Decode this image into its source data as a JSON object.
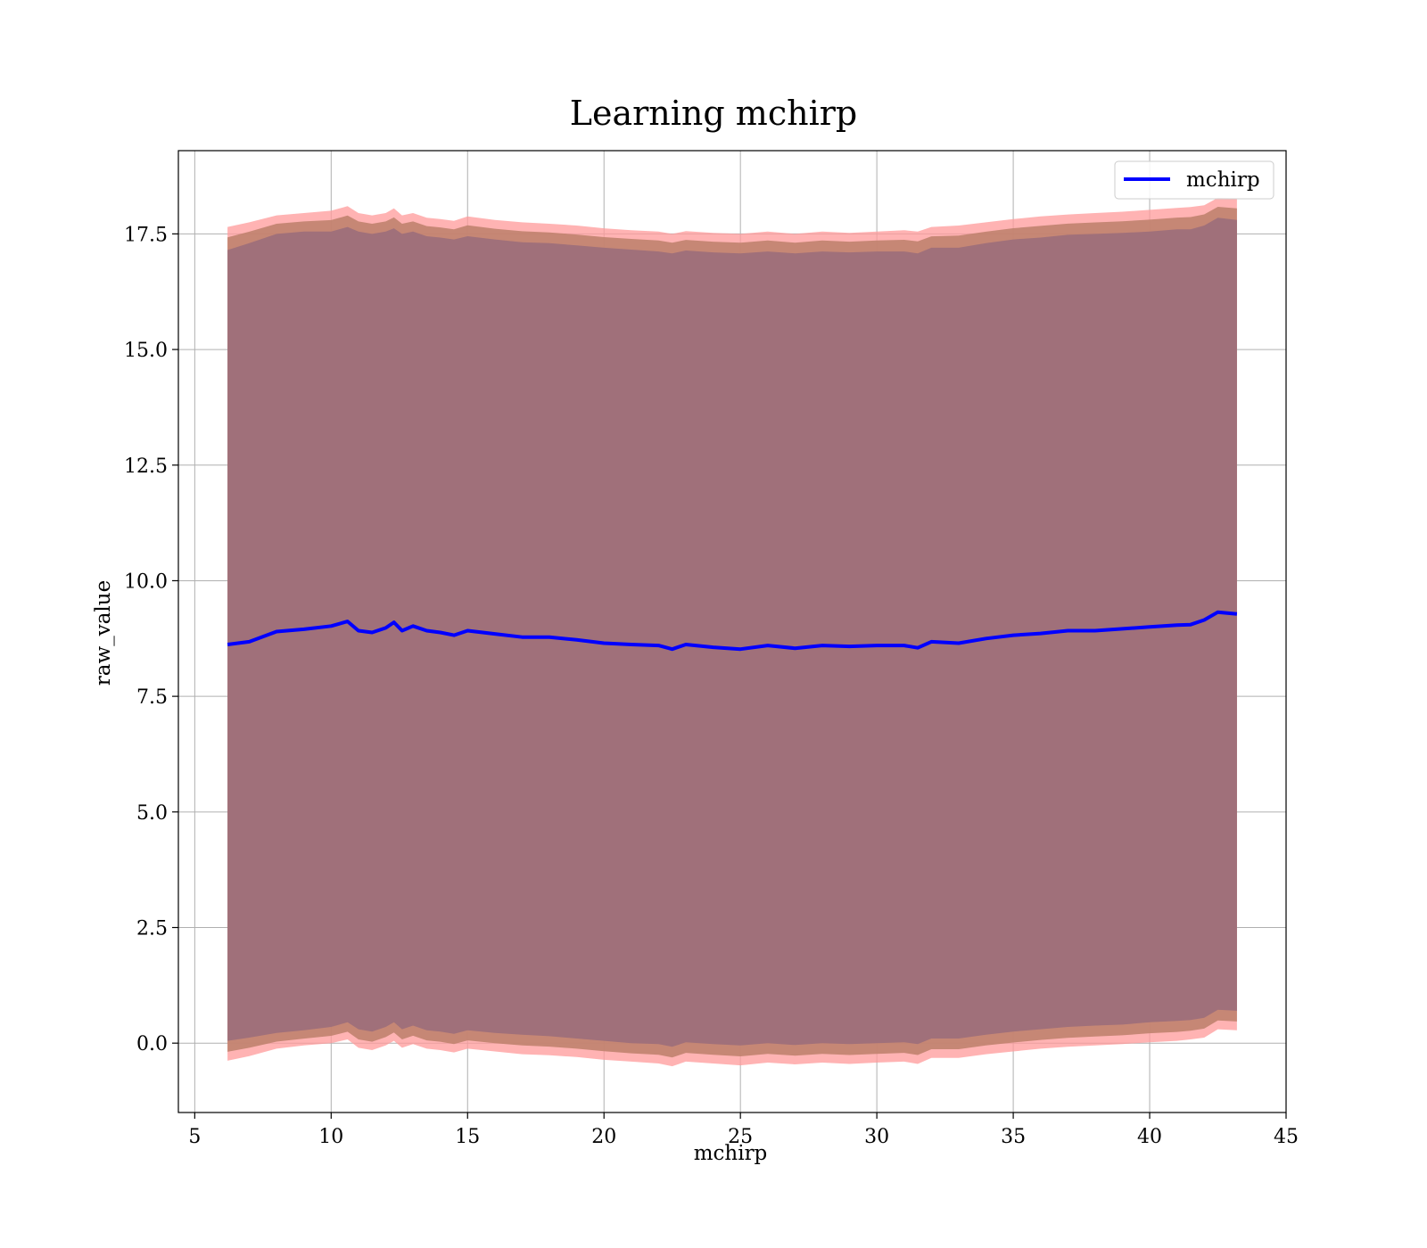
{
  "chart_data": {
    "type": "area",
    "title": "Learning mchirp",
    "xlabel": "mchirp",
    "ylabel": "raw_value",
    "xlim": [
      4.4,
      45
    ],
    "ylim": [
      -1.5,
      19.3
    ],
    "xticks": [
      5,
      10,
      15,
      20,
      25,
      30,
      35,
      40,
      45
    ],
    "xtick_labels": [
      "5",
      "10",
      "15",
      "20",
      "25",
      "30",
      "35",
      "40",
      "45"
    ],
    "yticks": [
      0.0,
      2.5,
      5.0,
      7.5,
      10.0,
      12.5,
      15.0,
      17.5
    ],
    "ytick_labels": [
      "0.0",
      "2.5",
      "5.0",
      "7.5",
      "10.0",
      "12.5",
      "15.0",
      "17.5"
    ],
    "grid": true,
    "legend": {
      "position": "top-right",
      "entries": [
        "mchirp"
      ]
    },
    "colors": {
      "line": "#0000ff",
      "outer_band": "#ff9999",
      "middle_band": "#c0826e",
      "inner_band": "#a0707a",
      "grid": "#b0b0b0"
    },
    "series": [
      {
        "name": "mchirp",
        "x": [
          6.2,
          7.0,
          8.0,
          9.0,
          10.0,
          10.6,
          11.0,
          11.5,
          12.0,
          12.3,
          12.6,
          13.0,
          13.5,
          14.0,
          14.5,
          15.0,
          16.0,
          17.0,
          18.0,
          19.0,
          20.0,
          21.0,
          22.0,
          22.5,
          23.0,
          24.0,
          25.0,
          26.0,
          27.0,
          28.0,
          29.0,
          30.0,
          31.0,
          31.5,
          32.0,
          33.0,
          34.0,
          35.0,
          36.0,
          37.0,
          38.0,
          39.0,
          40.0,
          41.0,
          41.5,
          42.0,
          42.5,
          43.2
        ],
        "y": [
          8.62,
          8.68,
          8.9,
          8.95,
          9.02,
          9.12,
          8.92,
          8.88,
          8.98,
          9.1,
          8.92,
          9.02,
          8.92,
          8.88,
          8.82,
          8.92,
          8.85,
          8.78,
          8.78,
          8.72,
          8.65,
          8.62,
          8.6,
          8.52,
          8.62,
          8.56,
          8.52,
          8.6,
          8.54,
          8.6,
          8.58,
          8.6,
          8.6,
          8.55,
          8.68,
          8.65,
          8.75,
          8.82,
          8.86,
          8.92,
          8.92,
          8.96,
          9.0,
          9.04,
          9.05,
          9.15,
          9.32,
          9.28
        ],
        "inner_upper": [
          17.15,
          17.3,
          17.5,
          17.55,
          17.55,
          17.65,
          17.55,
          17.5,
          17.55,
          17.62,
          17.5,
          17.55,
          17.45,
          17.42,
          17.38,
          17.45,
          17.38,
          17.32,
          17.3,
          17.25,
          17.2,
          17.16,
          17.12,
          17.08,
          17.14,
          17.1,
          17.08,
          17.12,
          17.08,
          17.12,
          17.1,
          17.12,
          17.12,
          17.08,
          17.2,
          17.2,
          17.3,
          17.38,
          17.42,
          17.48,
          17.5,
          17.52,
          17.55,
          17.6,
          17.6,
          17.68,
          17.85,
          17.8
        ],
        "inner_lower": [
          0.05,
          0.12,
          0.22,
          0.28,
          0.35,
          0.45,
          0.3,
          0.25,
          0.35,
          0.45,
          0.3,
          0.38,
          0.28,
          0.25,
          0.2,
          0.28,
          0.22,
          0.18,
          0.15,
          0.1,
          0.05,
          0.0,
          -0.02,
          -0.08,
          0.02,
          -0.02,
          -0.05,
          0.0,
          -0.04,
          0.0,
          -0.02,
          0.0,
          0.02,
          -0.02,
          0.1,
          0.1,
          0.18,
          0.25,
          0.3,
          0.35,
          0.38,
          0.4,
          0.45,
          0.48,
          0.5,
          0.55,
          0.72,
          0.7
        ],
        "outer_upper": [
          17.65,
          17.75,
          17.9,
          17.95,
          18.0,
          18.1,
          17.95,
          17.9,
          17.95,
          18.05,
          17.9,
          17.95,
          17.85,
          17.82,
          17.78,
          17.88,
          17.8,
          17.75,
          17.72,
          17.68,
          17.62,
          17.58,
          17.55,
          17.5,
          17.56,
          17.52,
          17.5,
          17.55,
          17.5,
          17.55,
          17.52,
          17.55,
          17.58,
          17.55,
          17.65,
          17.68,
          17.75,
          17.82,
          17.88,
          17.92,
          17.95,
          17.98,
          18.02,
          18.06,
          18.08,
          18.12,
          18.28,
          18.26
        ],
        "outer_lower": [
          -0.38,
          -0.28,
          -0.12,
          -0.05,
          0.0,
          0.08,
          -0.1,
          -0.15,
          -0.05,
          0.05,
          -0.1,
          -0.02,
          -0.12,
          -0.15,
          -0.2,
          -0.12,
          -0.18,
          -0.24,
          -0.26,
          -0.3,
          -0.36,
          -0.4,
          -0.44,
          -0.5,
          -0.4,
          -0.44,
          -0.48,
          -0.42,
          -0.46,
          -0.42,
          -0.45,
          -0.42,
          -0.4,
          -0.45,
          -0.32,
          -0.32,
          -0.24,
          -0.18,
          -0.12,
          -0.08,
          -0.05,
          -0.02,
          0.02,
          0.05,
          0.08,
          0.12,
          0.3,
          0.28
        ]
      }
    ]
  }
}
